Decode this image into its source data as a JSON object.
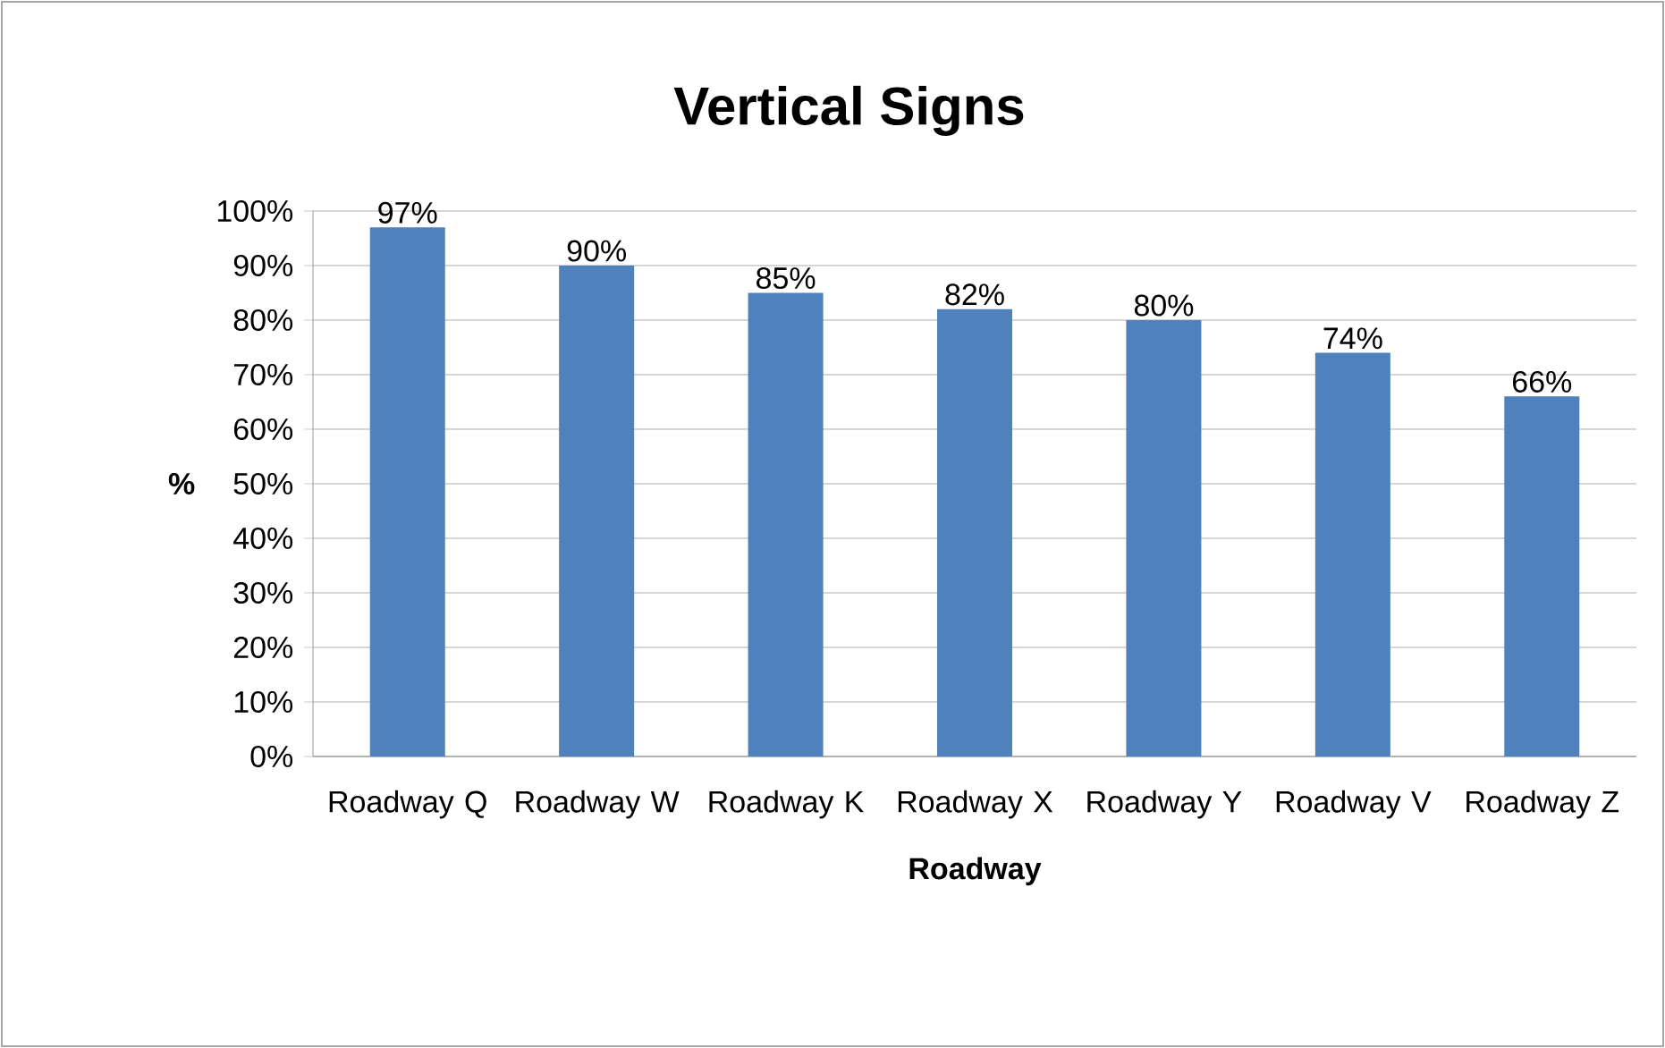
{
  "chart_data": {
    "type": "bar",
    "title": "Vertical Signs",
    "xlabel": "Roadway",
    "ylabel": "%",
    "categories": [
      "Roadway Q",
      "Roadway W",
      "Roadway K",
      "Roadway X",
      "Roadway Y",
      "Roadway V",
      "Roadway Z"
    ],
    "values": [
      97,
      90,
      85,
      82,
      80,
      74,
      66
    ],
    "value_labels": [
      "97%",
      "90%",
      "85%",
      "82%",
      "80%",
      "74%",
      "66%"
    ],
    "color": "#4f81bd",
    "ylim": [
      0,
      100
    ],
    "yticks": [
      {
        "value": 0,
        "label": "0%"
      },
      {
        "value": 10,
        "label": "10%"
      },
      {
        "value": 20,
        "label": "20%"
      },
      {
        "value": 30,
        "label": "30%"
      },
      {
        "value": 40,
        "label": "40%"
      },
      {
        "value": 50,
        "label": "50%"
      },
      {
        "value": 60,
        "label": "60%"
      },
      {
        "value": 70,
        "label": "70%"
      },
      {
        "value": 80,
        "label": "80%"
      },
      {
        "value": 90,
        "label": "90%"
      },
      {
        "value": 100,
        "label": "100%"
      }
    ],
    "grid": "y"
  }
}
